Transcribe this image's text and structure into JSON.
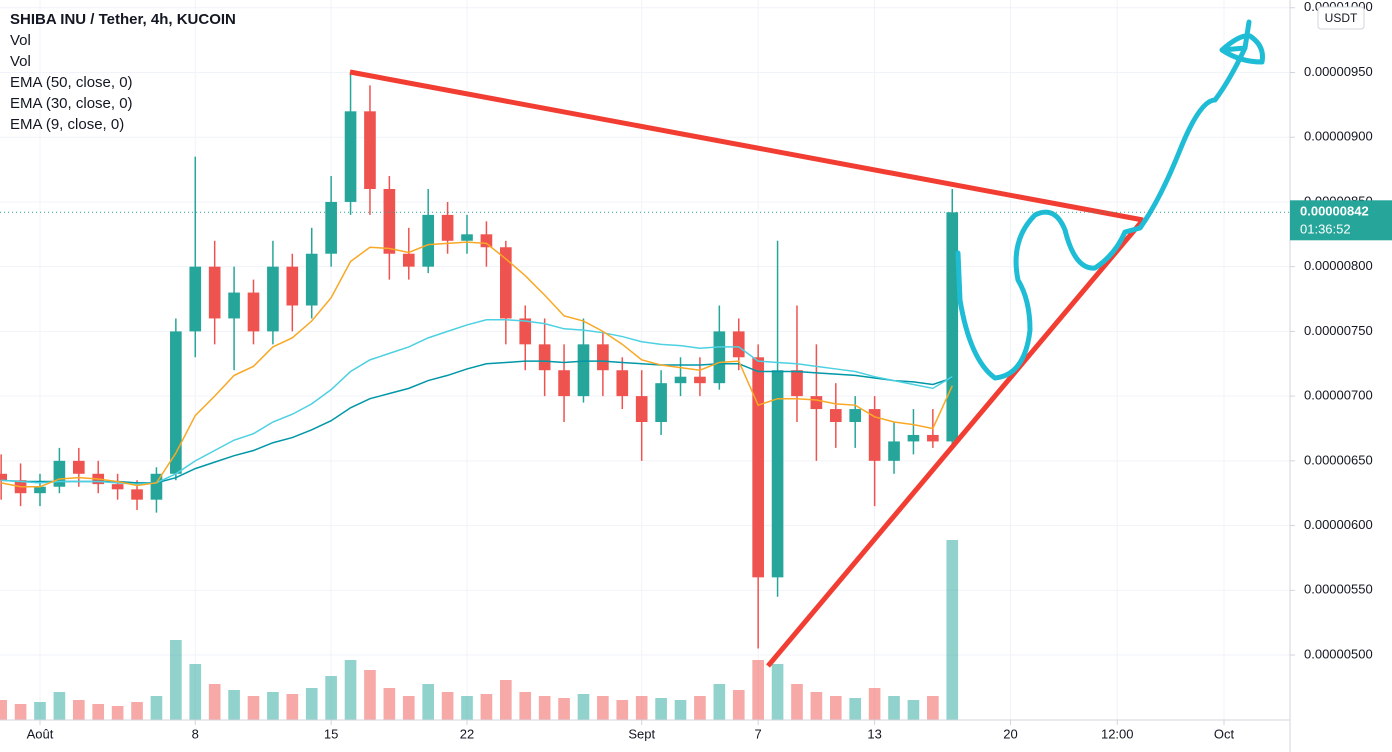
{
  "chart_data": {
    "type": "candlestick",
    "title": "SHIBA INU / Tether, 4h, KUCOIN",
    "currency": "USDT",
    "up_color": "#26a69a",
    "down_color": "#ef5350",
    "grid": true,
    "x": [
      -2,
      -1,
      0,
      1,
      2,
      3,
      4,
      5,
      6,
      7,
      8,
      9,
      10,
      11,
      12,
      13,
      14,
      15,
      16,
      17,
      18,
      19,
      20,
      21,
      22,
      23,
      24,
      25,
      26,
      27,
      28,
      29,
      30,
      31,
      32,
      33,
      34,
      35,
      36,
      37,
      38,
      39,
      40,
      41,
      42,
      43,
      44,
      45,
      46,
      47
    ],
    "open": [
      6.4e-06,
      6.35e-06,
      6.25e-06,
      6.3e-06,
      6.5e-06,
      6.4e-06,
      6.32e-06,
      6.28e-06,
      6.2e-06,
      6.4e-06,
      7.5e-06,
      8e-06,
      7.6e-06,
      7.8e-06,
      7.5e-06,
      8e-06,
      7.7e-06,
      8.1e-06,
      8.5e-06,
      9.2e-06,
      8.6e-06,
      8.1e-06,
      8e-06,
      8.4e-06,
      8.2e-06,
      8.25e-06,
      8.15e-06,
      7.6e-06,
      7.4e-06,
      7.2e-06,
      7e-06,
      7.4e-06,
      7.2e-06,
      7e-06,
      6.8e-06,
      7.1e-06,
      7.15e-06,
      7.1e-06,
      7.5e-06,
      7.3e-06,
      5.6e-06,
      7.2e-06,
      7e-06,
      6.9e-06,
      6.8e-06,
      6.9e-06,
      6.5e-06,
      6.65e-06,
      6.7e-06,
      6.65e-06
    ],
    "high": [
      6.55e-06,
      6.48e-06,
      6.4e-06,
      6.6e-06,
      6.6e-06,
      6.5e-06,
      6.4e-06,
      6.35e-06,
      6.45e-06,
      7.6e-06,
      8.85e-06,
      8.2e-06,
      8e-06,
      7.9e-06,
      8.2e-06,
      8.1e-06,
      8.3e-06,
      8.7e-06,
      9.5e-06,
      9.4e-06,
      8.7e-06,
      8.3e-06,
      8.6e-06,
      8.5e-06,
      8.4e-06,
      8.35e-06,
      8.2e-06,
      7.7e-06,
      7.6e-06,
      7.4e-06,
      7.6e-06,
      7.5e-06,
      7.3e-06,
      7.2e-06,
      7.2e-06,
      7.3e-06,
      7.3e-06,
      7.7e-06,
      7.6e-06,
      7.4e-06,
      8.2e-06,
      7.7e-06,
      7.4e-06,
      7.1e-06,
      7e-06,
      7e-06,
      6.8e-06,
      6.9e-06,
      6.9e-06,
      8.6e-06
    ],
    "low": [
      6.2e-06,
      6.15e-06,
      6.15e-06,
      6.25e-06,
      6.3e-06,
      6.25e-06,
      6.2e-06,
      6.12e-06,
      6.1e-06,
      6.35e-06,
      7.3e-06,
      7.4e-06,
      7.2e-06,
      7.4e-06,
      7.4e-06,
      7.5e-06,
      7.6e-06,
      8e-06,
      8.4e-06,
      8.4e-06,
      7.9e-06,
      7.9e-06,
      7.95e-06,
      8.1e-06,
      8.1e-06,
      8e-06,
      7.4e-06,
      7.2e-06,
      7e-06,
      6.8e-06,
      6.95e-06,
      7e-06,
      6.9e-06,
      6.5e-06,
      6.7e-06,
      7e-06,
      7e-06,
      7.05e-06,
      7.2e-06,
      5.05e-06,
      5.45e-06,
      6.8e-06,
      6.5e-06,
      6.6e-06,
      6.6e-06,
      6.15e-06,
      6.4e-06,
      6.55e-06,
      6.6e-06,
      6.6e-06
    ],
    "close": [
      6.35e-06,
      6.25e-06,
      6.3e-06,
      6.5e-06,
      6.4e-06,
      6.32e-06,
      6.28e-06,
      6.2e-06,
      6.4e-06,
      7.5e-06,
      8e-06,
      7.6e-06,
      7.8e-06,
      7.5e-06,
      8e-06,
      7.7e-06,
      8.1e-06,
      8.5e-06,
      9.2e-06,
      8.6e-06,
      8.1e-06,
      8e-06,
      8.4e-06,
      8.2e-06,
      8.25e-06,
      8.15e-06,
      7.6e-06,
      7.4e-06,
      7.2e-06,
      7e-06,
      7.4e-06,
      7.2e-06,
      7e-06,
      6.8e-06,
      7.1e-06,
      7.15e-06,
      7.1e-06,
      7.5e-06,
      7.3e-06,
      5.6e-06,
      7.2e-06,
      7e-06,
      6.9e-06,
      6.8e-06,
      6.9e-06,
      6.5e-06,
      6.65e-06,
      6.7e-06,
      6.65e-06,
      8.42e-06
    ],
    "volume": {
      "names": [
        "Vol",
        "Vol"
      ],
      "ylim": [
        0,
        100
      ],
      "values": [
        10,
        8,
        9,
        14,
        10,
        8,
        7,
        9,
        12,
        40,
        28,
        18,
        15,
        12,
        14,
        13,
        16,
        22,
        30,
        25,
        16,
        12,
        18,
        14,
        12,
        13,
        20,
        14,
        12,
        11,
        13,
        12,
        10,
        12,
        11,
        10,
        12,
        18,
        15,
        30,
        28,
        18,
        14,
        12,
        11,
        16,
        12,
        10,
        12,
        90
      ]
    },
    "series": [
      {
        "name": "EMA (50, close, 0)",
        "color": "#0097a7",
        "values": [
          6.35e-06,
          6.34e-06,
          6.34e-06,
          6.34e-06,
          6.34e-06,
          6.34e-06,
          6.34e-06,
          6.33e-06,
          6.33e-06,
          6.37e-06,
          6.44e-06,
          6.49e-06,
          6.54e-06,
          6.58e-06,
          6.64e-06,
          6.68e-06,
          6.74e-06,
          6.81e-06,
          6.91e-06,
          6.98e-06,
          7.02e-06,
          7.06e-06,
          7.12e-06,
          7.16e-06,
          7.21e-06,
          7.25e-06,
          7.26e-06,
          7.27e-06,
          7.27e-06,
          7.26e-06,
          7.27e-06,
          7.27e-06,
          7.26e-06,
          7.25e-06,
          7.24e-06,
          7.24e-06,
          7.24e-06,
          7.25e-06,
          7.25e-06,
          7.19e-06,
          7.19e-06,
          7.19e-06,
          7.18e-06,
          7.17e-06,
          7.16e-06,
          7.14e-06,
          7.12e-06,
          7.11e-06,
          7.09e-06,
          7.14e-06
        ]
      },
      {
        "name": "EMA (30, close, 0)",
        "color": "#4dd0e1",
        "values": [
          6.35e-06,
          6.34e-06,
          6.33e-06,
          6.34e-06,
          6.34e-06,
          6.34e-06,
          6.33e-06,
          6.32e-06,
          6.33e-06,
          6.4e-06,
          6.5e-06,
          6.58e-06,
          6.66e-06,
          6.71e-06,
          6.8e-06,
          6.86e-06,
          6.94e-06,
          7.05e-06,
          7.19e-06,
          7.28e-06,
          7.33e-06,
          7.38e-06,
          7.45e-06,
          7.5e-06,
          7.55e-06,
          7.59e-06,
          7.59e-06,
          7.58e-06,
          7.56e-06,
          7.52e-06,
          7.51e-06,
          7.49e-06,
          7.46e-06,
          7.42e-06,
          7.4e-06,
          7.39e-06,
          7.37e-06,
          7.38e-06,
          7.38e-06,
          7.27e-06,
          7.26e-06,
          7.25e-06,
          7.23e-06,
          7.21e-06,
          7.19e-06,
          7.15e-06,
          7.12e-06,
          7.09e-06,
          7.06e-06,
          7.15e-06
        ]
      },
      {
        "name": "EMA (9, close, 0)",
        "color": "#f9a825",
        "values": [
          6.33e-06,
          6.3e-06,
          6.3e-06,
          6.36e-06,
          6.37e-06,
          6.36e-06,
          6.34e-06,
          6.31e-06,
          6.33e-06,
          6.56e-06,
          6.85e-06,
          7e-06,
          7.16e-06,
          7.23e-06,
          7.38e-06,
          7.45e-06,
          7.58e-06,
          7.76e-06,
          8.04e-06,
          8.15e-06,
          8.14e-06,
          8.11e-06,
          8.17e-06,
          8.18e-06,
          8.19e-06,
          8.18e-06,
          8.06e-06,
          7.93e-06,
          7.78e-06,
          7.62e-06,
          7.58e-06,
          7.5e-06,
          7.4e-06,
          7.28e-06,
          7.24e-06,
          7.22e-06,
          7.2e-06,
          7.26e-06,
          7.27e-06,
          6.93e-06,
          6.98e-06,
          6.98e-06,
          6.97e-06,
          6.94e-06,
          6.93e-06,
          6.84e-06,
          6.8e-06,
          6.78e-06,
          6.75e-06,
          7.08e-06
        ]
      }
    ],
    "xlim": [
      -2.06,
      64.4
    ],
    "xticks": [
      {
        "value": 0,
        "label": "Août"
      },
      8,
      15,
      22,
      {
        "value": 31,
        "label": "Sept"
      },
      {
        "value": 37,
        "label": "7"
      },
      {
        "value": 43,
        "label": "13"
      },
      {
        "value": 50,
        "label": "20"
      },
      {
        "value": 55.5,
        "label": "12:00"
      },
      {
        "value": 61,
        "label": "Oct"
      }
    ],
    "ylim": [
      4.498e-06,
      1.006e-05
    ],
    "yticks": [
      {
        "value": 5e-06,
        "label": "0.00000500"
      },
      {
        "value": 5.5e-06,
        "label": "0.00000550"
      },
      {
        "value": 6e-06,
        "label": "0.00000600"
      },
      {
        "value": 6.5e-06,
        "label": "0.00000650"
      },
      {
        "value": 7e-06,
        "label": "0.00000700"
      },
      {
        "value": 7.5e-06,
        "label": "0.00000750"
      },
      {
        "value": 8e-06,
        "label": "0.00000800"
      },
      {
        "value": 8.5e-06,
        "label": "0.00000850"
      },
      {
        "value": 9e-06,
        "label": "0.00000900"
      },
      {
        "value": 9.5e-06,
        "label": "0.00000950"
      },
      {
        "value": 1e-05,
        "label": "0.00001000"
      }
    ],
    "last_price": {
      "value": 8.42e-06,
      "label": "0.00000842"
    },
    "countdown": "01:36:52"
  }
}
